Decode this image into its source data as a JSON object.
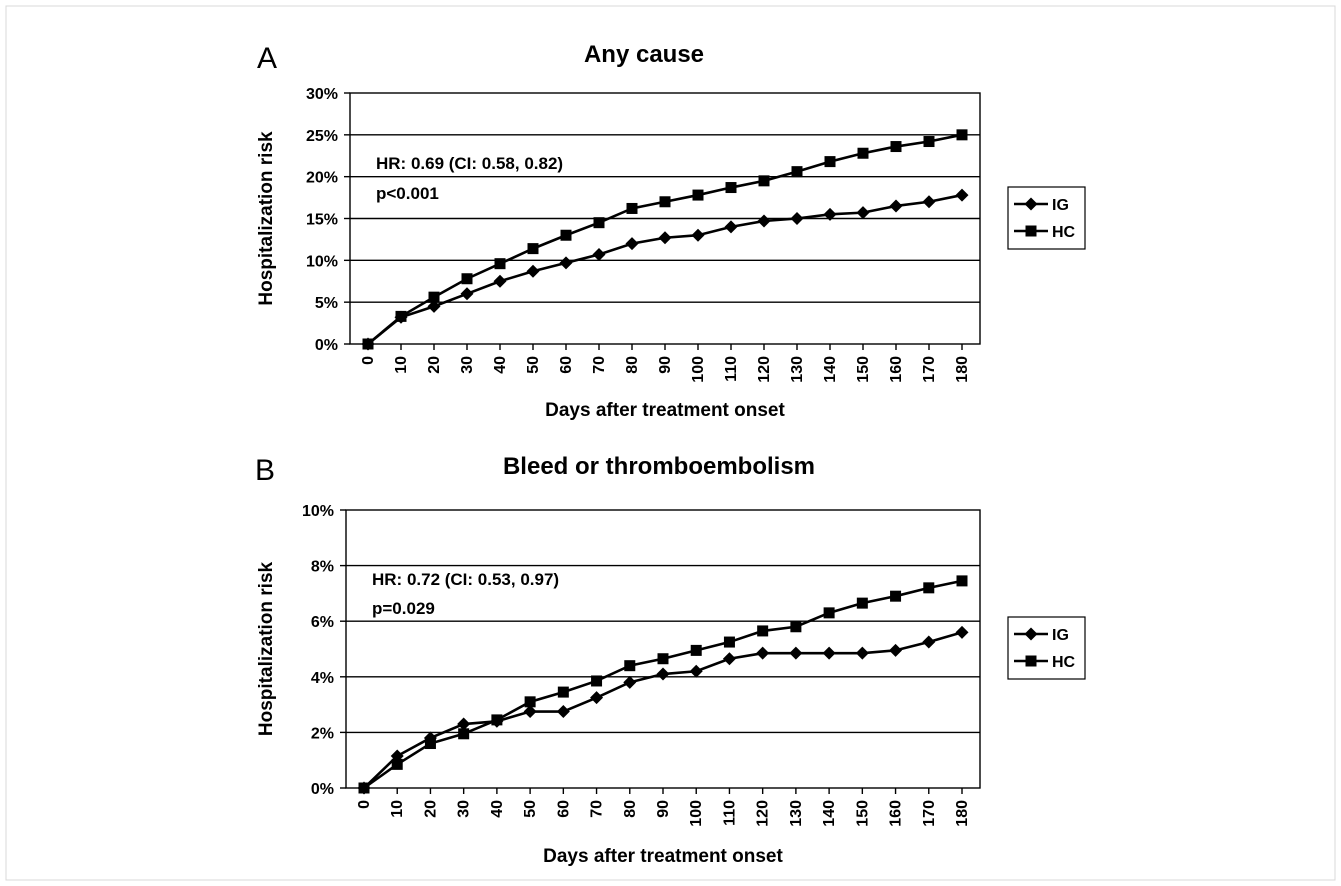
{
  "chart_data": [
    {
      "panel": "A",
      "type": "line",
      "title": "Any cause",
      "xlabel": "Days after treatment onset",
      "ylabel": "Hospitalization risk",
      "x": [
        0,
        10,
        20,
        30,
        40,
        50,
        60,
        70,
        80,
        90,
        100,
        110,
        120,
        130,
        140,
        150,
        160,
        170,
        180
      ],
      "x_tick_labels": [
        "0",
        "10",
        "20",
        "30",
        "40",
        "50",
        "60",
        "70",
        "80",
        "90",
        "100",
        "110",
        "120",
        "130",
        "140",
        "150",
        "160",
        "170",
        "180"
      ],
      "ylim": [
        0,
        30
      ],
      "y_ticks": [
        0,
        5,
        10,
        15,
        20,
        25,
        30
      ],
      "y_tick_labels": [
        "0%",
        "5%",
        "10%",
        "15%",
        "20%",
        "25%",
        "30%"
      ],
      "grid": "horizontal",
      "legend_position": "right",
      "annotations": [
        "HR: 0.69  (CI: 0.58, 0.82)",
        "p<0.001"
      ],
      "series": [
        {
          "name": "IG",
          "marker": "diamond",
          "values": [
            0,
            3.2,
            4.5,
            6.0,
            7.5,
            8.7,
            9.7,
            10.7,
            12.0,
            12.7,
            13.0,
            14.0,
            14.7,
            15.0,
            15.5,
            15.7,
            16.5,
            17.0,
            17.8
          ]
        },
        {
          "name": "HC",
          "marker": "square",
          "values": [
            0,
            3.3,
            5.6,
            7.8,
            9.6,
            11.4,
            13.0,
            14.5,
            16.2,
            17.0,
            17.8,
            18.7,
            19.5,
            20.6,
            21.8,
            22.8,
            23.6,
            24.2,
            25.0
          ]
        }
      ]
    },
    {
      "panel": "B",
      "type": "line",
      "title": "Bleed or thromboembolism",
      "xlabel": "Days after treatment onset",
      "ylabel": "Hospitalization risk",
      "x": [
        0,
        10,
        20,
        30,
        40,
        50,
        60,
        70,
        80,
        90,
        100,
        110,
        120,
        130,
        140,
        150,
        160,
        170,
        180
      ],
      "x_tick_labels": [
        "0",
        "10",
        "20",
        "30",
        "40",
        "50",
        "60",
        "70",
        "80",
        "90",
        "100",
        "110",
        "120",
        "130",
        "140",
        "150",
        "160",
        "170",
        "180"
      ],
      "ylim": [
        0,
        10
      ],
      "y_ticks": [
        0,
        2,
        4,
        6,
        8,
        10
      ],
      "y_tick_labels": [
        "0%",
        "2%",
        "4%",
        "6%",
        "8%",
        "10%"
      ],
      "grid": "horizontal",
      "legend_position": "right",
      "annotations": [
        "HR: 0.72  (CI: 0.53, 0.97)",
        "p=0.029"
      ],
      "series": [
        {
          "name": "IG",
          "marker": "diamond",
          "values": [
            0,
            1.15,
            1.8,
            2.3,
            2.4,
            2.75,
            2.75,
            3.25,
            3.8,
            4.1,
            4.2,
            4.65,
            4.85,
            4.85,
            4.85,
            4.85,
            4.95,
            5.25,
            5.6
          ]
        },
        {
          "name": "HC",
          "marker": "square",
          "values": [
            0,
            0.85,
            1.6,
            1.95,
            2.45,
            3.1,
            3.45,
            3.85,
            4.4,
            4.65,
            4.95,
            5.25,
            5.65,
            5.8,
            6.3,
            6.65,
            6.9,
            7.2,
            7.45
          ]
        }
      ]
    }
  ]
}
